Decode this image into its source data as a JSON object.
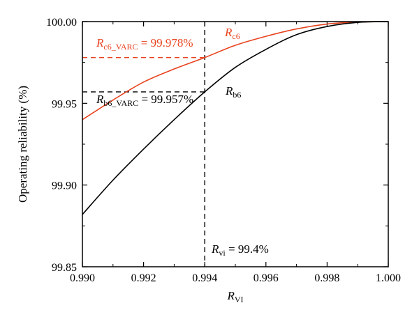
{
  "chart_data": {
    "type": "line",
    "xlabel": {
      "main": "R",
      "sub": "VI"
    },
    "ylabel": "Operating reliability (%)",
    "xlim": [
      0.99,
      1.0
    ],
    "ylim": [
      99.85,
      100.0
    ],
    "xticks": [
      0.99,
      0.992,
      0.994,
      0.996,
      0.998,
      1.0
    ],
    "xtick_labels": [
      "0.990",
      "0.992",
      "0.994",
      "0.996",
      "0.998",
      "1.000"
    ],
    "yticks": [
      99.85,
      99.9,
      99.95,
      100.0
    ],
    "ytick_labels": [
      "99.85",
      "99.90",
      "99.95",
      "100.00"
    ],
    "grid": false,
    "series": [
      {
        "name": "R_c6",
        "color": "#e8431e",
        "x": [
          0.99,
          0.991,
          0.992,
          0.993,
          0.994,
          0.995,
          0.996,
          0.997,
          0.998,
          0.999,
          1.0
        ],
        "y": [
          99.94,
          99.952,
          99.963,
          99.971,
          99.978,
          99.9855,
          99.991,
          99.9955,
          99.9985,
          99.9997,
          100.0
        ]
      },
      {
        "name": "R_b6",
        "color": "#000000",
        "x": [
          0.99,
          0.991,
          0.992,
          0.993,
          0.994,
          0.995,
          0.996,
          0.997,
          0.998,
          0.999,
          1.0
        ],
        "y": [
          99.882,
          99.903,
          99.922,
          99.94,
          99.957,
          99.972,
          99.983,
          99.992,
          99.997,
          99.9995,
          100.0
        ]
      }
    ],
    "reference_lines": [
      {
        "kind": "vertical",
        "x": 0.994,
        "color": "#000000",
        "dash": true
      },
      {
        "kind": "horizontal",
        "y": 99.978,
        "x_end": 0.994,
        "color": "#e8431e",
        "dash": true
      },
      {
        "kind": "horizontal",
        "y": 99.957,
        "x_end": 0.994,
        "color": "#000000",
        "dash": true
      }
    ],
    "annotations": {
      "c6_varc": {
        "main": "R",
        "sub": "c6_VARC",
        "text": " = 99.978%",
        "color": "#e8431e"
      },
      "b6_varc": {
        "main": "R",
        "sub": "b6_VARC",
        "text": " = 99.957%",
        "color": "#000000"
      },
      "rc6": {
        "main": "R",
        "sub": "c6",
        "color": "#e8431e"
      },
      "rb6": {
        "main": "R",
        "sub": "b6",
        "color": "#000000"
      },
      "rvi": {
        "main": "R",
        "sub": "vi",
        "text": " = 99.4%",
        "color": "#000000"
      }
    }
  }
}
